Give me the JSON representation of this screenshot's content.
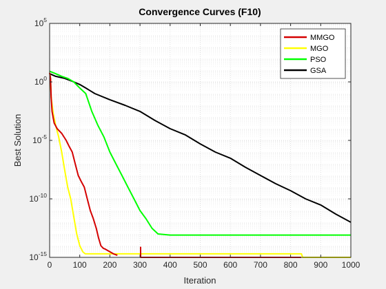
{
  "chart_data": {
    "type": "line",
    "title": "Convergence Curves (F10)",
    "xlabel": "Iteration",
    "ylabel": "Best Solution",
    "xlim": [
      0,
      1000
    ],
    "ylim": [
      1e-15,
      100000
    ],
    "yscale": "log",
    "xticks": [
      0,
      100,
      200,
      300,
      400,
      500,
      600,
      700,
      800,
      900,
      1000
    ],
    "xtick_labels": [
      "0",
      "100",
      "200",
      "300",
      "400",
      "500",
      "600",
      "700",
      "800",
      "900",
      "1000"
    ],
    "yticks": [
      {
        "exp": 5,
        "base": "10",
        "sup": "5"
      },
      {
        "exp": 0,
        "base": "10",
        "sup": "0"
      },
      {
        "exp": -5,
        "base": "10",
        "sup": "-5"
      },
      {
        "exp": -10,
        "base": "10",
        "sup": "-10"
      },
      {
        "exp": -15,
        "base": "10",
        "sup": "-15"
      }
    ],
    "grid": true,
    "minor_grid": true,
    "legend_position": "top-right",
    "series": [
      {
        "name": "MMGO",
        "color": "#d40000",
        "segments": [
          [
            [
              0,
              6
            ],
            [
              3,
              2
            ],
            [
              5,
              0.05
            ],
            [
              8,
              0.003
            ],
            [
              15,
              0.0003
            ],
            [
              25,
              0.0001
            ],
            [
              40,
              4e-05
            ],
            [
              55,
              1e-05
            ],
            [
              65,
              3e-06
            ],
            [
              75,
              1e-06
            ],
            [
              85,
              1e-07
            ],
            [
              95,
              1e-08
            ],
            [
              105,
              3e-09
            ],
            [
              115,
              1e-09
            ],
            [
              125,
              1e-10
            ],
            [
              135,
              1e-11
            ],
            [
              145,
              2e-12
            ],
            [
              155,
              3e-13
            ],
            [
              162,
              5e-14
            ],
            [
              170,
              1e-14
            ],
            [
              178,
              6e-15
            ],
            [
              185,
              5e-15
            ],
            [
              200,
              3e-15
            ],
            [
              212,
              2e-15
            ],
            [
              225,
              1.5e-15
            ]
          ],
          [
            [
              302,
              8e-15
            ],
            [
              302,
              1e-15
            ],
            [
              835,
              1e-15
            ],
            [
              835,
              1e-15
            ]
          ]
        ]
      },
      {
        "name": "MGO",
        "color": "#ffff00",
        "segments": [
          [
            [
              0,
              6
            ],
            [
              3,
              2
            ],
            [
              5,
              0.05
            ],
            [
              12,
              0.002
            ],
            [
              20,
              0.0002
            ],
            [
              30,
              2e-05
            ],
            [
              40,
              1e-06
            ],
            [
              50,
              3e-08
            ],
            [
              60,
              1e-09
            ],
            [
              70,
              1e-10
            ],
            [
              80,
              3e-12
            ],
            [
              90,
              1e-13
            ],
            [
              100,
              1e-14
            ],
            [
              110,
              3e-15
            ],
            [
              118,
              2e-15
            ],
            [
              300,
              2e-15
            ],
            [
              836,
              2e-15
            ],
            [
              840,
              1e-15
            ],
            [
              1000,
              1e-15
            ]
          ]
        ]
      },
      {
        "name": "PSO",
        "color": "#00ff00",
        "segments": [
          [
            [
              0,
              8
            ],
            [
              20,
              5
            ],
            [
              40,
              3
            ],
            [
              60,
              2
            ],
            [
              80,
              1
            ],
            [
              100,
              0.3
            ],
            [
              120,
              0.1
            ],
            [
              140,
              0.003
            ],
            [
              160,
              0.0002
            ],
            [
              180,
              2e-05
            ],
            [
              200,
              1e-06
            ],
            [
              220,
              1e-07
            ],
            [
              240,
              1e-08
            ],
            [
              260,
              1e-09
            ],
            [
              280,
              1e-10
            ],
            [
              300,
              1e-11
            ],
            [
              320,
              2e-12
            ],
            [
              340,
              3e-13
            ],
            [
              360,
              1e-13
            ],
            [
              400,
              8e-14
            ],
            [
              500,
              8e-14
            ],
            [
              700,
              8e-14
            ],
            [
              1000,
              8e-14
            ]
          ]
        ]
      },
      {
        "name": "GSA",
        "color": "#000000",
        "segments": [
          [
            [
              0,
              5
            ],
            [
              20,
              3
            ],
            [
              50,
              2
            ],
            [
              80,
              1
            ],
            [
              100,
              0.6
            ],
            [
              120,
              0.3
            ],
            [
              150,
              0.1
            ],
            [
              200,
              0.03
            ],
            [
              250,
              0.01
            ],
            [
              300,
              0.003
            ],
            [
              350,
              0.0005
            ],
            [
              400,
              0.0001
            ],
            [
              450,
              3e-05
            ],
            [
              500,
              5e-06
            ],
            [
              550,
              1e-06
            ],
            [
              600,
              3e-07
            ],
            [
              650,
              5e-08
            ],
            [
              700,
              1e-08
            ],
            [
              750,
              2e-09
            ],
            [
              800,
              5e-10
            ],
            [
              850,
              1e-10
            ],
            [
              900,
              3e-11
            ],
            [
              950,
              5e-12
            ],
            [
              1000,
              1e-12
            ]
          ]
        ]
      }
    ]
  }
}
